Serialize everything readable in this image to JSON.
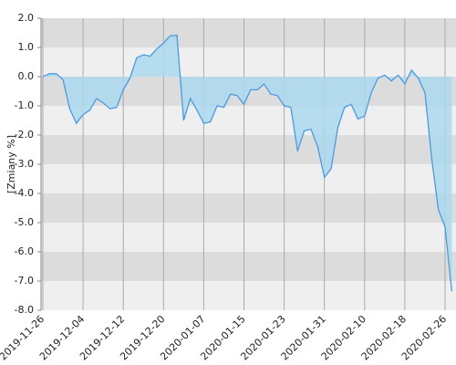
{
  "chart_data": {
    "type": "area",
    "y_label": "[Zmiany %]",
    "categories": [
      "2019-11-26",
      null,
      null,
      null,
      null,
      null,
      "2019-12-04",
      null,
      null,
      null,
      null,
      null,
      "2019-12-12",
      null,
      null,
      null,
      null,
      null,
      "2019-12-20",
      null,
      null,
      null,
      null,
      null,
      "2020-01-07",
      null,
      null,
      null,
      null,
      null,
      "2020-01-15",
      null,
      null,
      null,
      null,
      null,
      "2020-01-23",
      null,
      null,
      null,
      null,
      null,
      "2020-01-31",
      null,
      null,
      null,
      null,
      null,
      "2020-02-10",
      null,
      null,
      null,
      null,
      null,
      "2020-02-18",
      null,
      null,
      null,
      null,
      null,
      "2020-02-26",
      null
    ],
    "values": [
      0.0,
      0.1,
      0.1,
      -0.1,
      -1.1,
      -1.6,
      -1.3,
      -1.15,
      -0.75,
      -0.9,
      -1.1,
      -1.05,
      -0.45,
      -0.05,
      0.65,
      0.75,
      0.7,
      0.95,
      1.15,
      1.4,
      1.42,
      -1.5,
      -0.75,
      -1.15,
      -1.6,
      -1.55,
      -1.0,
      -1.05,
      -0.6,
      -0.65,
      -0.95,
      -0.45,
      -0.45,
      -0.25,
      -0.6,
      -0.65,
      -1.0,
      -1.05,
      -2.55,
      -1.85,
      -1.8,
      -2.4,
      -3.45,
      -3.15,
      -1.75,
      -1.05,
      -0.95,
      -1.45,
      -1.35,
      -0.55,
      -0.05,
      0.05,
      -0.15,
      0.05,
      -0.25,
      0.22,
      -0.05,
      -0.55,
      -2.8,
      -4.55,
      -5.15,
      -7.35
    ],
    "color": "#4a9be0",
    "fill": "#aad8ef",
    "ylim": [
      -8,
      2
    ],
    "yticks": [
      {
        "value": -8,
        "label": "-8.0"
      },
      {
        "value": -7,
        "label": "-7.0"
      },
      {
        "value": -6,
        "label": "-6.0"
      },
      {
        "value": -5,
        "label": "-5.0"
      },
      {
        "value": -4,
        "label": "-4.0"
      },
      {
        "value": -3,
        "label": "-3.0"
      },
      {
        "value": -2,
        "label": "-2.0"
      },
      {
        "value": -1,
        "label": "-1.0"
      },
      {
        "value": 0,
        "label": "0.0"
      },
      {
        "value": 1,
        "label": "1.0"
      },
      {
        "value": 2,
        "label": "2.0"
      }
    ]
  }
}
